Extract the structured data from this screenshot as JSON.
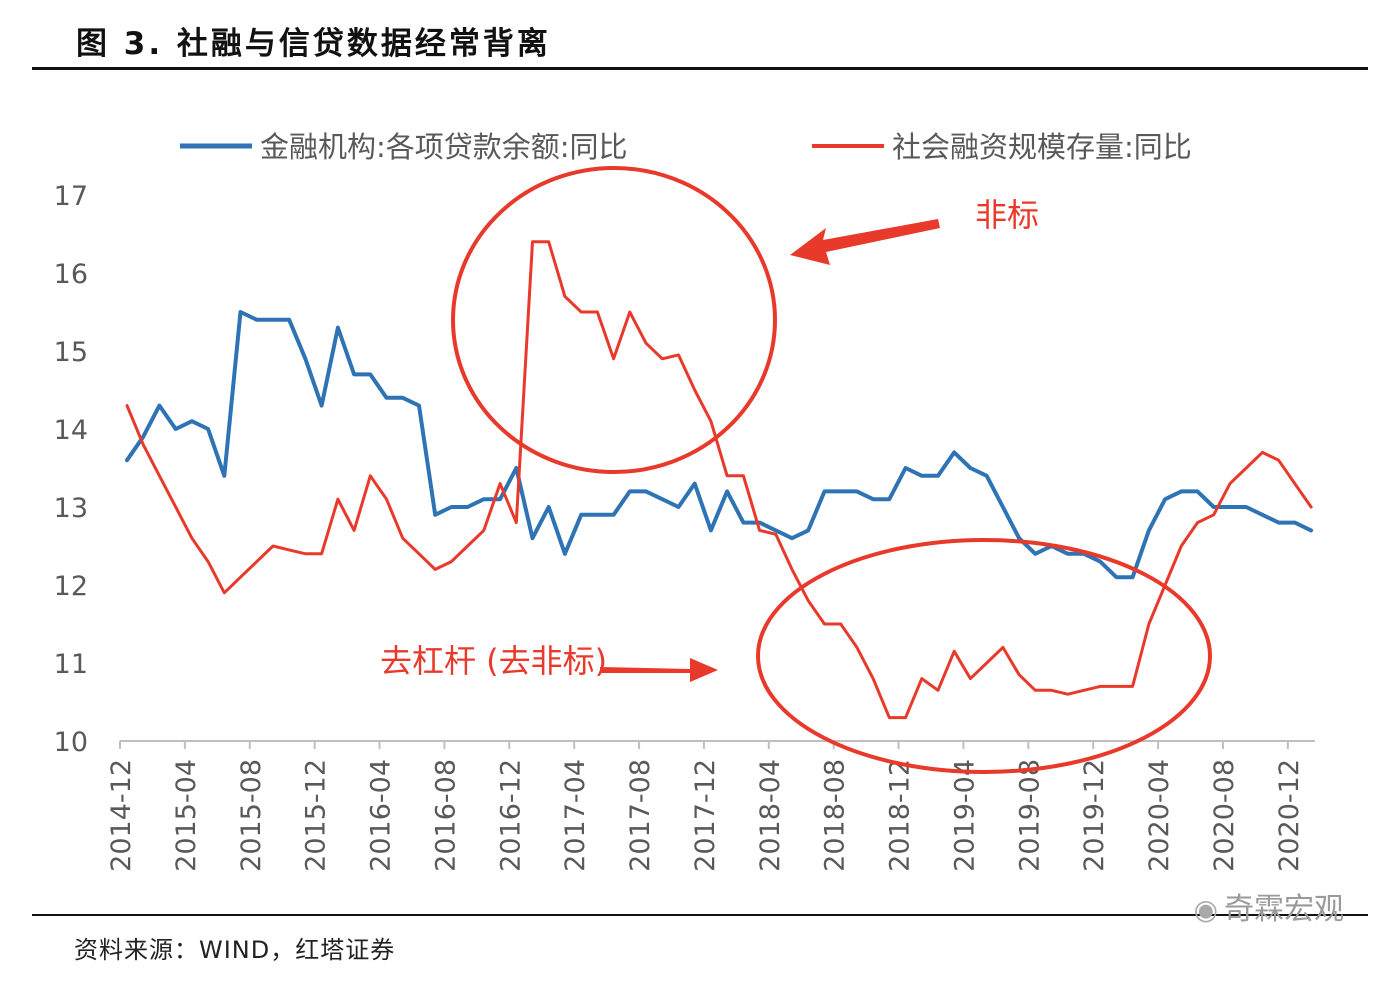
{
  "header": {
    "title": "图 3. 社融与信贷数据经常背离"
  },
  "footer": {
    "source": "资料来源：WIND，红塔证券",
    "watermark": "奇霖宏观",
    "watermark_icon": "wechat-icon"
  },
  "colors": {
    "loans": "#2e74b5",
    "tsf": "#e8392b",
    "annotation": "#e8392b"
  },
  "chart_data": {
    "type": "line",
    "title": "",
    "xlabel": "",
    "ylabel": "",
    "ylim": [
      10,
      17
    ],
    "yticks": [
      10,
      11,
      12,
      13,
      14,
      15,
      16,
      17
    ],
    "grid": false,
    "legend_position": "top",
    "x_start": "2014-12",
    "x_end": "2021-02",
    "x_tick_labels": [
      "2014-12",
      "2015-04",
      "2015-08",
      "2015-12",
      "2016-04",
      "2016-08",
      "2016-12",
      "2017-04",
      "2017-08",
      "2017-12",
      "2018-04",
      "2018-08",
      "2018-12",
      "2019-04",
      "2019-08",
      "2019-12",
      "2020-04",
      "2020-08",
      "2020-12"
    ],
    "series": [
      {
        "name": "金融机构:各项贷款余额:同比",
        "color": "#2e74b5",
        "values": [
          13.6,
          13.9,
          14.3,
          14.0,
          14.1,
          14.0,
          13.4,
          15.5,
          15.4,
          15.4,
          15.4,
          14.9,
          14.3,
          15.3,
          14.7,
          14.7,
          14.4,
          14.4,
          14.3,
          12.9,
          13.0,
          13.0,
          13.1,
          13.1,
          13.5,
          12.6,
          13.0,
          12.4,
          12.9,
          12.9,
          12.9,
          13.2,
          13.2,
          13.1,
          13.0,
          13.3,
          12.7,
          13.2,
          12.8,
          12.8,
          12.7,
          12.6,
          12.7,
          13.2,
          13.2,
          13.2,
          13.1,
          13.1,
          13.5,
          13.4,
          13.4,
          13.7,
          13.5,
          13.4,
          13.0,
          12.6,
          12.4,
          12.5,
          12.4,
          12.4,
          12.3,
          12.1,
          12.1,
          12.7,
          13.1,
          13.2,
          13.2,
          13.0,
          13.0,
          13.0,
          12.9,
          12.8,
          12.8,
          12.7
        ]
      },
      {
        "name": "社会融资规模存量:同比",
        "color": "#e8392b",
        "values": [
          14.3,
          13.8,
          13.4,
          13.0,
          12.6,
          12.3,
          11.9,
          12.1,
          12.3,
          12.5,
          12.45,
          12.4,
          12.4,
          13.1,
          12.7,
          13.4,
          13.1,
          12.6,
          12.4,
          12.2,
          12.3,
          12.5,
          12.7,
          13.3,
          12.8,
          16.4,
          16.4,
          15.7,
          15.5,
          15.5,
          14.9,
          15.5,
          15.1,
          14.9,
          14.95,
          14.5,
          14.1,
          13.4,
          13.4,
          12.7,
          12.65,
          12.2,
          11.8,
          11.5,
          11.5,
          11.2,
          10.8,
          10.3,
          10.3,
          10.8,
          10.65,
          11.15,
          10.8,
          11.0,
          11.2,
          10.85,
          10.65,
          10.65,
          10.6,
          10.65,
          10.7,
          10.7,
          10.7,
          11.5,
          12.0,
          12.5,
          12.8,
          12.9,
          13.3,
          13.5,
          13.7,
          13.6,
          13.3,
          13.0
        ]
      }
    ],
    "annotations": [
      {
        "text": "非标",
        "target": "2017 非标 expansion (circled)"
      },
      {
        "text": "去杠杆 (去非标)",
        "target": "2018–2019 deleveraging (circled)"
      }
    ]
  }
}
